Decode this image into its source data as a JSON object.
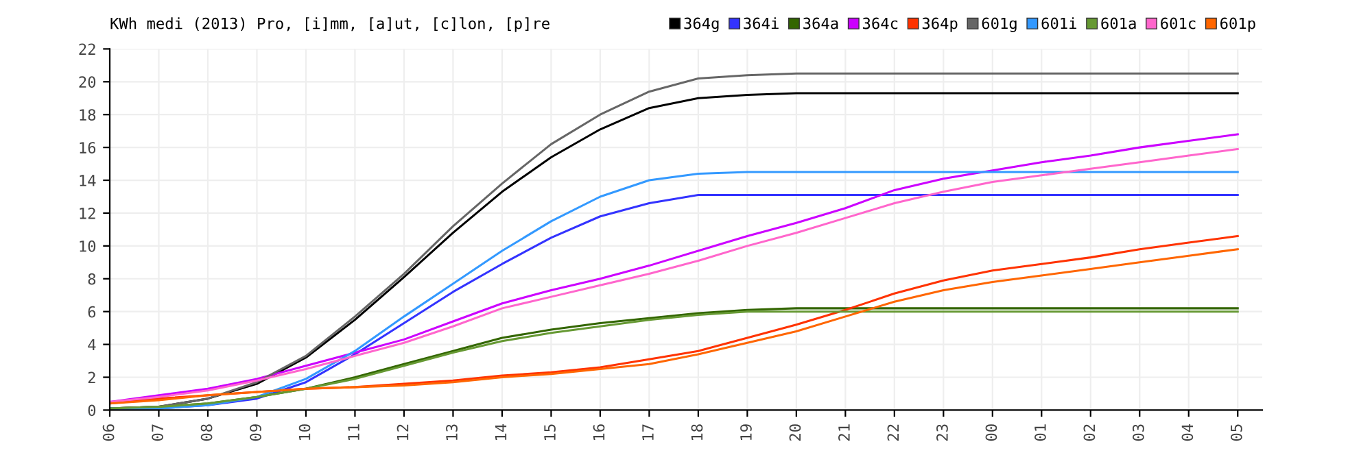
{
  "chart_data": {
    "type": "line",
    "title": "KWh medi (2013) Pro, [i]mm, [a]ut, [c]lon, [p]re",
    "categories": [
      "06",
      "07",
      "08",
      "09",
      "10",
      "11",
      "12",
      "13",
      "14",
      "15",
      "16",
      "17",
      "18",
      "19",
      "20",
      "21",
      "22",
      "23",
      "00",
      "01",
      "02",
      "03",
      "04",
      "05"
    ],
    "ylim": [
      0,
      22
    ],
    "yticks": [
      0,
      2,
      4,
      6,
      8,
      10,
      12,
      14,
      16,
      18,
      20,
      22
    ],
    "grid": true,
    "legend": "top right",
    "marker": "none",
    "line_style": "solid",
    "series": [
      {
        "name": "364g",
        "color": "#000000",
        "values": [
          0.1,
          0.2,
          0.7,
          1.6,
          3.2,
          5.5,
          8.1,
          10.8,
          13.3,
          15.4,
          17.1,
          18.4,
          19.0,
          19.2,
          19.3,
          19.3,
          19.3,
          19.3,
          19.3,
          19.3,
          19.3,
          19.3,
          19.3,
          19.3
        ]
      },
      {
        "name": "364i",
        "color": "#3333ff",
        "values": [
          0.1,
          0.1,
          0.3,
          0.7,
          1.7,
          3.4,
          5.3,
          7.2,
          8.9,
          10.5,
          11.8,
          12.6,
          13.1,
          13.1,
          13.1,
          13.1,
          13.1,
          13.1,
          13.1,
          13.1,
          13.1,
          13.1,
          13.1,
          13.1
        ]
      },
      {
        "name": "364a",
        "color": "#336600",
        "values": [
          0.1,
          0.2,
          0.4,
          0.8,
          1.3,
          2.0,
          2.8,
          3.6,
          4.4,
          4.9,
          5.3,
          5.6,
          5.9,
          6.1,
          6.2,
          6.2,
          6.2,
          6.2,
          6.2,
          6.2,
          6.2,
          6.2,
          6.2,
          6.2
        ]
      },
      {
        "name": "364c",
        "color": "#cc00ff",
        "values": [
          0.5,
          0.9,
          1.3,
          1.9,
          2.7,
          3.5,
          4.3,
          5.4,
          6.5,
          7.3,
          8.0,
          8.8,
          9.7,
          10.6,
          11.4,
          12.3,
          13.4,
          14.1,
          14.6,
          15.1,
          15.5,
          16.0,
          16.4,
          16.8
        ]
      },
      {
        "name": "364p",
        "color": "#ff3300",
        "values": [
          0.4,
          0.7,
          0.9,
          1.1,
          1.3,
          1.4,
          1.6,
          1.8,
          2.1,
          2.3,
          2.6,
          3.1,
          3.6,
          4.4,
          5.2,
          6.1,
          7.1,
          7.9,
          8.5,
          8.9,
          9.3,
          9.8,
          10.2,
          10.6
        ]
      },
      {
        "name": "601g",
        "color": "#666666",
        "values": [
          0.1,
          0.2,
          0.7,
          1.7,
          3.3,
          5.7,
          8.3,
          11.2,
          13.8,
          16.2,
          18.0,
          19.4,
          20.2,
          20.4,
          20.5,
          20.5,
          20.5,
          20.5,
          20.5,
          20.5,
          20.5,
          20.5,
          20.5,
          20.5
        ]
      },
      {
        "name": "601i",
        "color": "#3399ff",
        "values": [
          0.1,
          0.1,
          0.3,
          0.8,
          1.9,
          3.6,
          5.7,
          7.7,
          9.7,
          11.5,
          13.0,
          14.0,
          14.4,
          14.5,
          14.5,
          14.5,
          14.5,
          14.5,
          14.5,
          14.5,
          14.5,
          14.5,
          14.5,
          14.5
        ]
      },
      {
        "name": "601a",
        "color": "#669933",
        "values": [
          0.1,
          0.2,
          0.4,
          0.8,
          1.3,
          1.9,
          2.7,
          3.5,
          4.2,
          4.7,
          5.1,
          5.5,
          5.8,
          6.0,
          6.0,
          6.0,
          6.0,
          6.0,
          6.0,
          6.0,
          6.0,
          6.0,
          6.0,
          6.0
        ]
      },
      {
        "name": "601c",
        "color": "#ff66cc",
        "values": [
          0.5,
          0.8,
          1.2,
          1.8,
          2.5,
          3.3,
          4.1,
          5.1,
          6.2,
          6.9,
          7.6,
          8.3,
          9.1,
          10.0,
          10.8,
          11.7,
          12.6,
          13.3,
          13.9,
          14.3,
          14.7,
          15.1,
          15.5,
          15.9
        ]
      },
      {
        "name": "601p",
        "color": "#ff6600",
        "values": [
          0.4,
          0.6,
          0.9,
          1.1,
          1.3,
          1.4,
          1.5,
          1.7,
          2.0,
          2.2,
          2.5,
          2.8,
          3.4,
          4.1,
          4.8,
          5.7,
          6.6,
          7.3,
          7.8,
          8.2,
          8.6,
          9.0,
          9.4,
          9.8
        ]
      }
    ]
  }
}
